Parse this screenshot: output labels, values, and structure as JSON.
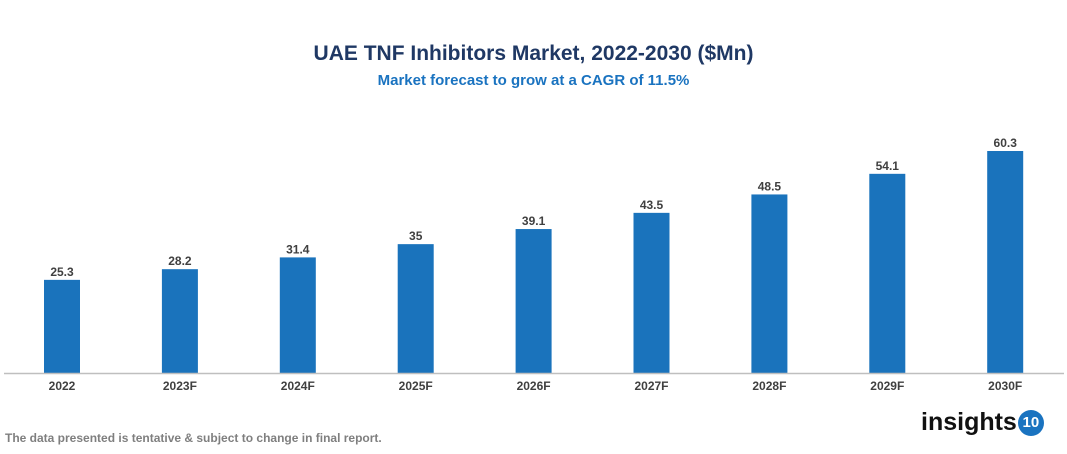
{
  "chart_data": {
    "type": "bar",
    "title": "UAE TNF Inhibitors Market, 2022-2030 ($Mn)",
    "subtitle": "Market forecast to grow at a CAGR of 11.5%",
    "categories": [
      "2022",
      "2023F",
      "2024F",
      "2025F",
      "2026F",
      "2027F",
      "2028F",
      "2029F",
      "2030F"
    ],
    "values": [
      25.3,
      28.2,
      31.4,
      35,
      39.1,
      43.5,
      48.5,
      54.1,
      60.3
    ],
    "xlabel": "",
    "ylabel": "",
    "ylim": [
      0,
      60.3
    ],
    "grid": false,
    "bar_color": "#1a73bc"
  },
  "footnote": "The data presented is tentative & subject to change in final report.",
  "logo": {
    "text": "insights",
    "badge": "10"
  }
}
